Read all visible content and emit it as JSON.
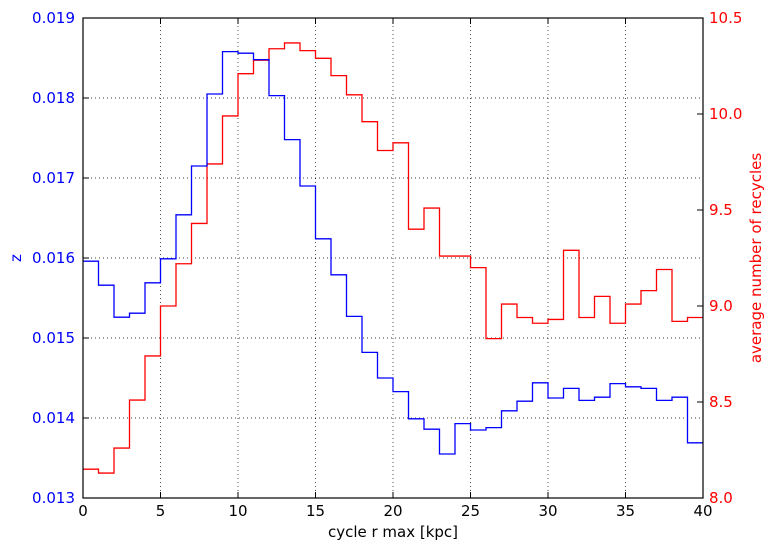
{
  "chart_data": {
    "type": "step",
    "xlabel": "cycle r max [kpc]",
    "xlim": [
      0,
      40
    ],
    "xticks": [
      0,
      5,
      10,
      15,
      20,
      25,
      30,
      35,
      40
    ],
    "grid": true,
    "bin_edges": [
      0,
      1,
      2,
      3,
      4,
      5,
      6,
      7,
      8,
      9,
      10,
      11,
      12,
      13,
      14,
      15,
      16,
      17,
      18,
      19,
      20,
      21,
      22,
      23,
      24,
      25,
      26,
      27,
      28,
      29,
      30,
      31,
      32,
      33,
      34,
      35,
      36,
      37,
      38,
      39,
      40
    ],
    "series": [
      {
        "name": "z",
        "axis": "left",
        "color": "#0000ff",
        "ylabel": "z",
        "ylim": [
          0.013,
          0.019
        ],
        "yticks": [
          0.013,
          0.014,
          0.015,
          0.016,
          0.017,
          0.018,
          0.019
        ],
        "ytick_labels": [
          "0.013",
          "0.014",
          "0.015",
          "0.016",
          "0.017",
          "0.018",
          "0.019"
        ],
        "values": [
          0.01596,
          0.01566,
          0.01526,
          0.01531,
          0.01569,
          0.01599,
          0.01654,
          0.01715,
          0.01805,
          0.01858,
          0.01856,
          0.01848,
          0.01803,
          0.01748,
          0.0169,
          0.01624,
          0.01579,
          0.01527,
          0.01482,
          0.0145,
          0.01433,
          0.01399,
          0.01386,
          0.01355,
          0.01393,
          0.01385,
          0.01388,
          0.01409,
          0.01421,
          0.01444,
          0.01425,
          0.01437,
          0.01422,
          0.01426,
          0.01443,
          0.01439,
          0.01437,
          0.01422,
          0.01426,
          0.01369
        ]
      },
      {
        "name": "average number of recycles",
        "axis": "right",
        "color": "#ff0000",
        "ylabel": "average number of recycles",
        "ylim": [
          8.0,
          10.5
        ],
        "yticks": [
          8.0,
          8.5,
          9.0,
          9.5,
          10.0,
          10.5
        ],
        "ytick_labels": [
          "8.0",
          "8.5",
          "9.0",
          "9.5",
          "10.0",
          "10.5"
        ],
        "values": [
          8.15,
          8.13,
          8.26,
          8.51,
          8.74,
          9.0,
          9.22,
          9.43,
          9.74,
          9.99,
          10.21,
          10.28,
          10.34,
          10.37,
          10.33,
          10.29,
          10.2,
          10.1,
          9.96,
          9.81,
          9.85,
          9.4,
          9.51,
          9.26,
          9.26,
          9.2,
          8.83,
          9.01,
          8.94,
          8.91,
          8.93,
          9.29,
          8.94,
          9.05,
          8.91,
          9.01,
          9.08,
          9.19,
          8.92,
          8.94
        ]
      }
    ]
  }
}
